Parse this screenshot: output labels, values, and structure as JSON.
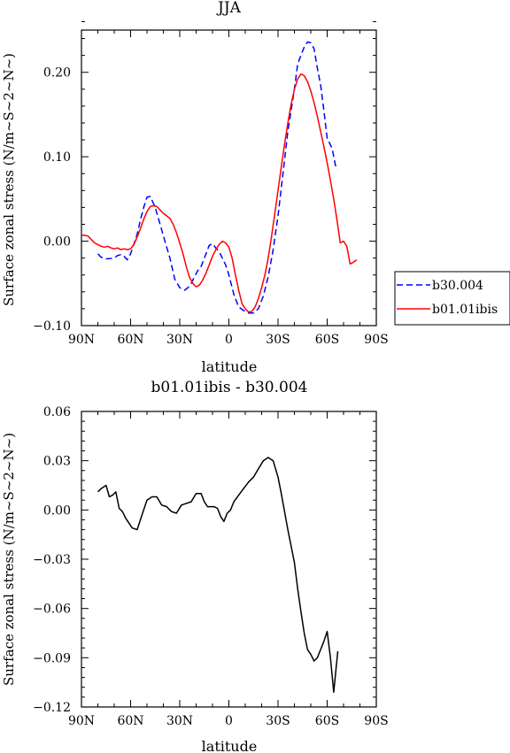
{
  "chart_data": [
    {
      "type": "line",
      "title": "JJA",
      "xlabel": "latitude",
      "ylabel": "Surface zonal stress (N/m~S~2~N~)",
      "xlim": [
        90,
        -90
      ],
      "ylim": [
        -0.1,
        0.25
      ],
      "x_tick_values": [
        90,
        60,
        30,
        0,
        -30,
        -60,
        -90
      ],
      "x_tick_labels": [
        "90N",
        "60N",
        "30N",
        "0",
        "30S",
        "60S",
        "90S"
      ],
      "y_tick_values": [
        -0.1,
        0.0,
        0.1,
        0.2
      ],
      "y_tick_labels": [
        "-0.10",
        "0.00",
        "0.10",
        "0.20"
      ],
      "legend": "right",
      "series": [
        {
          "name": "b30.004",
          "color": "#0000ff",
          "dash": "dashed",
          "x": [
            80,
            78,
            75,
            70,
            68,
            66,
            64,
            62,
            60,
            56,
            54,
            52,
            50,
            48,
            45,
            42,
            39,
            36,
            33,
            30,
            27,
            25,
            23,
            21,
            19,
            17,
            15,
            12,
            10,
            8,
            6,
            4,
            2,
            0,
            -3,
            -6,
            -9,
            -12,
            -15,
            -18,
            -21,
            -24,
            -27,
            -30,
            -33,
            -36,
            -40,
            -42,
            -44,
            -46,
            -48,
            -50,
            -52,
            -54,
            -56,
            -58,
            -60,
            -63,
            -65,
            -66.5
          ],
          "y": [
            -0.015,
            -0.019,
            -0.021,
            -0.02,
            -0.017,
            -0.016,
            -0.018,
            -0.022,
            -0.015,
            0.008,
            0.025,
            0.04,
            0.052,
            0.053,
            0.04,
            0.02,
            0.0,
            -0.02,
            -0.045,
            -0.055,
            -0.058,
            -0.055,
            -0.05,
            -0.042,
            -0.035,
            -0.03,
            -0.02,
            -0.005,
            -0.003,
            -0.008,
            -0.012,
            -0.02,
            -0.028,
            -0.04,
            -0.063,
            -0.078,
            -0.082,
            -0.085,
            -0.085,
            -0.08,
            -0.065,
            -0.042,
            -0.01,
            0.03,
            0.08,
            0.13,
            0.18,
            0.21,
            0.22,
            0.23,
            0.236,
            0.235,
            0.228,
            0.205,
            0.185,
            0.155,
            0.122,
            0.11,
            0.09,
            0.085
          ]
        },
        {
          "name": "b01.01ibis",
          "color": "#ff0000",
          "dash": "solid",
          "x": [
            90,
            88,
            86,
            84,
            82,
            80,
            78,
            76,
            74,
            72,
            70,
            68,
            66,
            64,
            62,
            60,
            58,
            56,
            54,
            52,
            50,
            48,
            46,
            44,
            42,
            40,
            38,
            36,
            34,
            32,
            30,
            28,
            26,
            24,
            22,
            20,
            18,
            16,
            14,
            12,
            10,
            8,
            6,
            4,
            2,
            0,
            -2,
            -4,
            -6,
            -8,
            -10,
            -12,
            -14,
            -16,
            -18,
            -20,
            -22,
            -24,
            -26,
            -28,
            -30,
            -32,
            -34,
            -36,
            -38,
            -40,
            -42,
            -44,
            -46,
            -48,
            -50,
            -52,
            -54,
            -56,
            -58,
            -60,
            -62,
            -64,
            -66,
            -68,
            -70,
            -72,
            -74,
            -76,
            -78
          ],
          "y": [
            0.007,
            0.007,
            0.006,
            0.002,
            -0.002,
            -0.004,
            -0.006,
            -0.007,
            -0.006,
            -0.008,
            -0.009,
            -0.008,
            -0.01,
            -0.009,
            -0.01,
            -0.009,
            -0.004,
            0.005,
            0.015,
            0.026,
            0.035,
            0.041,
            0.042,
            0.041,
            0.037,
            0.033,
            0.03,
            0.027,
            0.02,
            0.01,
            -0.002,
            -0.015,
            -0.03,
            -0.043,
            -0.05,
            -0.054,
            -0.052,
            -0.046,
            -0.038,
            -0.028,
            -0.018,
            -0.01,
            -0.004,
            0.0,
            -0.002,
            -0.007,
            -0.02,
            -0.04,
            -0.058,
            -0.074,
            -0.08,
            -0.084,
            -0.083,
            -0.078,
            -0.068,
            -0.055,
            -0.04,
            -0.02,
            0.005,
            0.032,
            0.06,
            0.088,
            0.115,
            0.14,
            0.162,
            0.18,
            0.192,
            0.198,
            0.196,
            0.189,
            0.178,
            0.164,
            0.148,
            0.13,
            0.112,
            0.093,
            0.072,
            0.05,
            0.025,
            -0.002,
            0.0,
            -0.006,
            -0.027,
            -0.025,
            -0.022
          ]
        }
      ]
    },
    {
      "type": "line",
      "title": "b01.01ibis - b30.004",
      "xlabel": "latitude",
      "ylabel": "Surface zonal stress (N/m~S~2~N~)",
      "xlim": [
        90,
        -90
      ],
      "ylim": [
        -0.12,
        0.06
      ],
      "x_tick_values": [
        90,
        60,
        30,
        0,
        -30,
        -60,
        -90
      ],
      "x_tick_labels": [
        "90N",
        "60N",
        "30N",
        "0",
        "30S",
        "60S",
        "90S"
      ],
      "y_tick_values": [
        -0.12,
        -0.09,
        -0.06,
        -0.03,
        0.0,
        0.03,
        0.06
      ],
      "y_tick_labels": [
        "-0.12",
        "-0.09",
        "-0.06",
        "-0.03",
        "0.00",
        "0.03",
        "0.06"
      ],
      "series": [
        {
          "color": "#000000",
          "dash": "solid",
          "x": [
            80,
            78,
            75,
            73,
            71,
            69,
            67,
            65,
            63,
            59,
            56,
            53,
            50,
            47,
            44,
            41,
            38,
            35,
            32,
            29,
            26,
            23,
            20,
            17,
            15,
            13,
            11,
            9,
            7,
            5,
            3,
            1,
            -1,
            -3,
            -6,
            -9,
            -12,
            -15,
            -18,
            -21,
            -24,
            -27,
            -30,
            -32,
            -34,
            -36,
            -38,
            -40,
            -42,
            -44,
            -46,
            -48,
            -50,
            -52,
            -54,
            -56,
            -58,
            -60,
            -62,
            -64,
            -66.5
          ],
          "y": [
            0.011,
            0.013,
            0.015,
            0.008,
            0.009,
            0.011,
            0.001,
            -0.001,
            -0.005,
            -0.011,
            -0.012,
            -0.003,
            0.006,
            0.008,
            0.008,
            0.003,
            0.002,
            -0.001,
            -0.002,
            0.003,
            0.004,
            0.005,
            0.01,
            0.01,
            0.005,
            0.002,
            0.002,
            0.002,
            0.001,
            -0.004,
            -0.007,
            -0.002,
            0.0,
            0.005,
            0.009,
            0.013,
            0.017,
            0.02,
            0.025,
            0.03,
            0.032,
            0.03,
            0.02,
            0.01,
            -0.001,
            -0.012,
            -0.022,
            -0.032,
            -0.048,
            -0.062,
            -0.075,
            -0.085,
            -0.088,
            -0.092,
            -0.09,
            -0.085,
            -0.08,
            -0.074,
            -0.09,
            -0.111,
            -0.086
          ]
        }
      ]
    }
  ]
}
